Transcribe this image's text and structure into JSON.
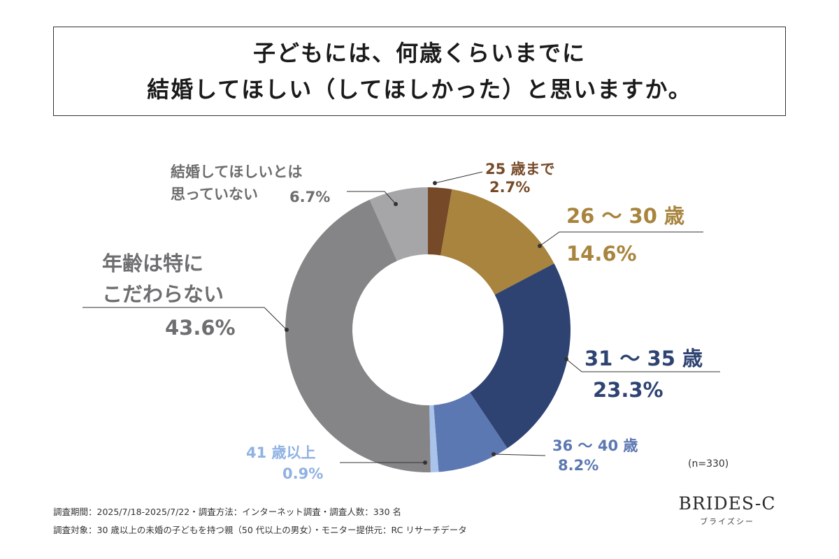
{
  "title": {
    "line1": "子どもには、何歳くらいまでに",
    "line2": "結婚してほしい（してほしかった）と思いますか。"
  },
  "chart_data": {
    "type": "pie",
    "variant": "donut",
    "title": "子どもには、何歳くらいまでに結婚してほしい（してほしかった）と思いますか。",
    "slices": [
      {
        "label": "25 歳まで",
        "value": 2.7,
        "value_label": "2.7%",
        "color": "#764a28"
      },
      {
        "label": "26 ～ 30 歳",
        "value": 14.6,
        "value_label": "14.6%",
        "color": "#a8843e"
      },
      {
        "label": "31 ～ 35 歳",
        "value": 23.3,
        "value_label": "23.3%",
        "color": "#2e4372"
      },
      {
        "label": "36 ～ 40 歳",
        "value": 8.2,
        "value_label": "8.2%",
        "color": "#5c78b2"
      },
      {
        "label": "41 歳以上",
        "value": 0.9,
        "value_label": "0.9%",
        "color": "#a9c3ea"
      },
      {
        "label": "年齢は特にこだわらない",
        "value": 43.6,
        "value_label": "43.6%",
        "color": "#858487"
      },
      {
        "label": "結婚してほしいとは思っていない",
        "value": 6.7,
        "value_label": "6.7%",
        "color": "#a6a5a8"
      }
    ],
    "sample_size": "(n=330)"
  },
  "labels": {
    "s0_name": "25 歳まで",
    "s0_value": "2.7%",
    "s1_name": "26 ～ 30 歳",
    "s1_value": "14.6%",
    "s2_name": "31 ～ 35 歳",
    "s2_value": "23.3%",
    "s3_name": "36 ～ 40 歳",
    "s3_value": "8.2%",
    "s4_name": "41 歳以上",
    "s4_value": "0.9%",
    "s5_name_line1": "年齢は特に",
    "s5_name_line2": "こだわらない",
    "s5_value": "43.6%",
    "s6_name_line1": "結婚してほしいとは",
    "s6_name_line2": "思っていない",
    "s6_value": "6.7%"
  },
  "footer": {
    "note1": "調査期間：2025/7/18-2025/7/22・調査方法：インターネット調査・調査人数：330 名",
    "note2": "調査対象：30 歳以上の未婚の子どもを持つ親（50 代以上の男女）・モニター提供元：RC リサーチデータ",
    "n": "(n=330)",
    "logo_main": "BRIDES-C",
    "logo_sub": "ブライズシー"
  },
  "colors": {
    "text_dark": "#222222",
    "label_gray": "#6e6e70",
    "label_blue_dark": "#2e4372",
    "label_blue_mid": "#5c78b2",
    "label_blue_light": "#8fb1e3",
    "label_gold": "#a8843e",
    "label_brown": "#764a28"
  }
}
